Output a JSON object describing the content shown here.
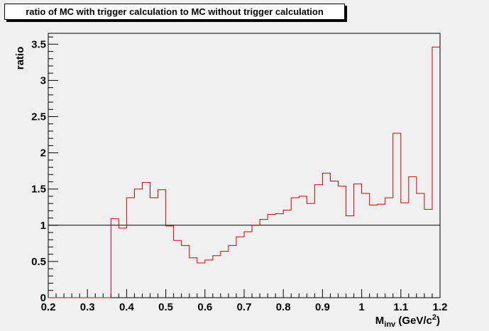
{
  "chart_data": {
    "type": "histogram",
    "title": "ratio of MC with trigger calculation to MC without trigger calculation",
    "ylabel": "ratio",
    "xlabel_main": "M",
    "xlabel_sub": "inv",
    "xlabel_rest": " (GeV/c",
    "xlabel_sup": "2",
    "xlabel_close": ")",
    "xlim": [
      0.2,
      1.2
    ],
    "ylim": [
      0,
      3.65
    ],
    "x_major_ticks": [
      0.2,
      0.3,
      0.4,
      0.5,
      0.6,
      0.7,
      0.8,
      0.9,
      1.0,
      1.1,
      1.2
    ],
    "x_tick_labels": [
      "0.2",
      "0.3",
      "0.4",
      "0.5",
      "0.6",
      "0.7",
      "0.8",
      "0.9",
      "1",
      "1.1",
      "1.2"
    ],
    "y_major_ticks": [
      0,
      0.5,
      1,
      1.5,
      2,
      2.5,
      3,
      3.5
    ],
    "y_tick_labels": [
      "0",
      "0.5",
      "1",
      "1.5",
      "2",
      "2.5",
      "3",
      "3.5"
    ],
    "bin_width": 0.02,
    "bin_edges_start": 0.2,
    "values": [
      0,
      0,
      0,
      0,
      0,
      0,
      0,
      0,
      1.09,
      0.96,
      1.38,
      1.5,
      1.59,
      1.38,
      1.49,
      0.99,
      0.79,
      0.72,
      0.55,
      0.48,
      0.52,
      0.58,
      0.64,
      0.72,
      0.84,
      0.91,
      1.0,
      1.08,
      1.15,
      1.16,
      1.21,
      1.38,
      1.4,
      1.3,
      1.56,
      1.72,
      1.61,
      1.54,
      1.13,
      1.57,
      1.44,
      1.28,
      1.29,
      1.38,
      2.27,
      1.31,
      1.67,
      1.44,
      1.22,
      3.46
    ],
    "reference_line": 1.0,
    "hist_color": "#d40000",
    "line_color": "#000000"
  }
}
